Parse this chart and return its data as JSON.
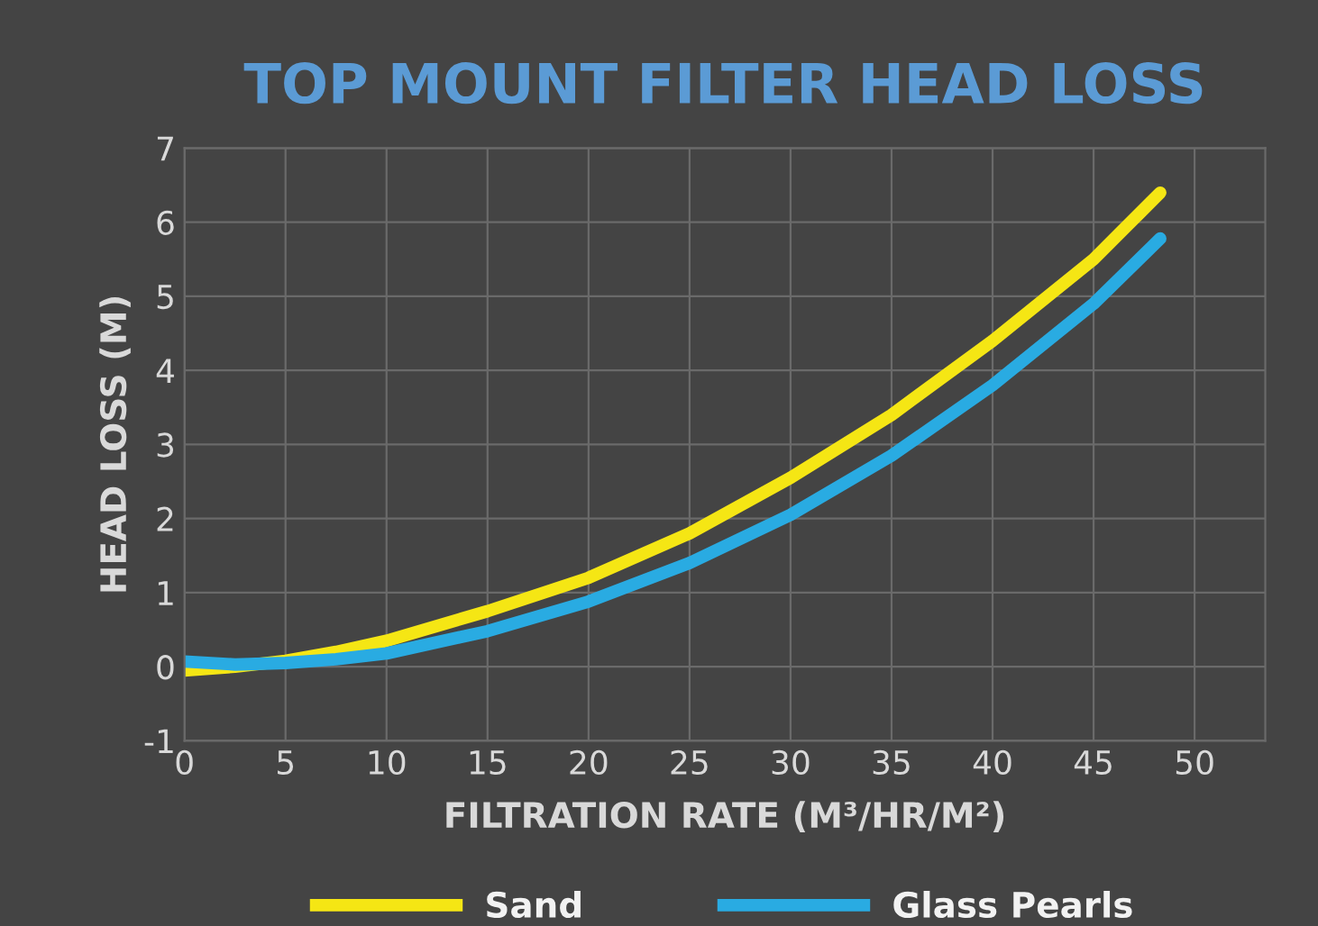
{
  "chart_data": {
    "type": "line",
    "title": "TOP MOUNT FILTER HEAD LOSS",
    "xlabel": "FILTRATION RATE (M³/HR/M²)",
    "ylabel": "HEAD LOSS (M)",
    "series": [
      {
        "name": "Sand",
        "color": "#f5e614",
        "x": [
          0,
          2.5,
          5,
          7.5,
          10,
          15,
          20,
          25,
          30,
          35,
          40,
          45,
          48.3
        ],
        "values": [
          -0.05,
          0.0,
          0.08,
          0.2,
          0.35,
          0.75,
          1.2,
          1.8,
          2.55,
          3.4,
          4.4,
          5.5,
          6.4
        ]
      },
      {
        "name": "Glass Pearls",
        "color": "#29abe2",
        "x": [
          0,
          2.5,
          5,
          7.5,
          10,
          15,
          20,
          25,
          30,
          35,
          40,
          45,
          48.3
        ],
        "values": [
          0.07,
          0.03,
          0.05,
          0.1,
          0.18,
          0.48,
          0.88,
          1.4,
          2.05,
          2.85,
          3.8,
          4.9,
          5.78
        ]
      }
    ],
    "xlim": [
      0,
      53.5
    ],
    "xticks": [
      0,
      5,
      10,
      15,
      20,
      25,
      30,
      35,
      40,
      45,
      50
    ],
    "ylim": [
      -1,
      7
    ],
    "yticks": [
      -1,
      0,
      1,
      2,
      3,
      4,
      5,
      6,
      7
    ],
    "grid": true,
    "legend": "bottom",
    "marker": "none",
    "line_style": "solid"
  }
}
